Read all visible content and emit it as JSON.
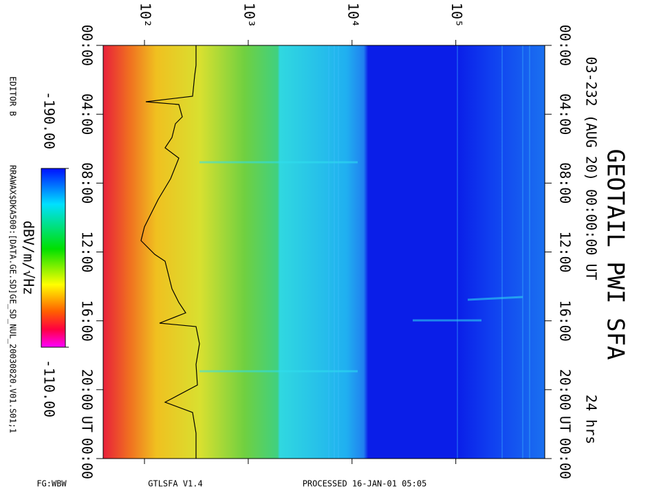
{
  "chart_data": {
    "type": "spectrogram",
    "title": "GEOTAIL PWI SFA",
    "subtitle": "03-232 (AUG 20) 00:00:00 UT",
    "duration": "24 hrs",
    "axis_unit": "UT",
    "xscale": "log",
    "xlim": [
      40,
      720000
    ],
    "xticks": [
      {
        "value": 100,
        "label": "10²"
      },
      {
        "value": 1000,
        "label": "10³"
      },
      {
        "value": 10000,
        "label": "10⁴"
      },
      {
        "value": 100000,
        "label": "10⁵"
      }
    ],
    "ylim": [
      0,
      24
    ],
    "yticks": [
      {
        "value": 0,
        "label": "00:00"
      },
      {
        "value": 4,
        "label": "04:00"
      },
      {
        "value": 8,
        "label": "08:00"
      },
      {
        "value": 12,
        "label": "12:00"
      },
      {
        "value": 16,
        "label": "16:00"
      },
      {
        "value": 20,
        "label": "20:00"
      },
      {
        "value": 24,
        "label": "00:00"
      }
    ],
    "ut_position": 22,
    "colorbar": {
      "label": "dBV/m/√Hz",
      "clim": [
        -190,
        -110
      ],
      "ticks": [
        {
          "value": -190,
          "label": "-190.00"
        },
        {
          "value": -110,
          "label": "-110.00"
        }
      ]
    }
  },
  "footer": {
    "editor": "EDITOR B",
    "file": "RRAWAX$DKA500:[DATA.GE.SD]GE_SD_NUL_20030820.V01.S01;1",
    "left": "FG:WBW",
    "program": "GTLSFA   V1.4",
    "processed": "PROCESSED 16-JAN-01   05:05"
  }
}
